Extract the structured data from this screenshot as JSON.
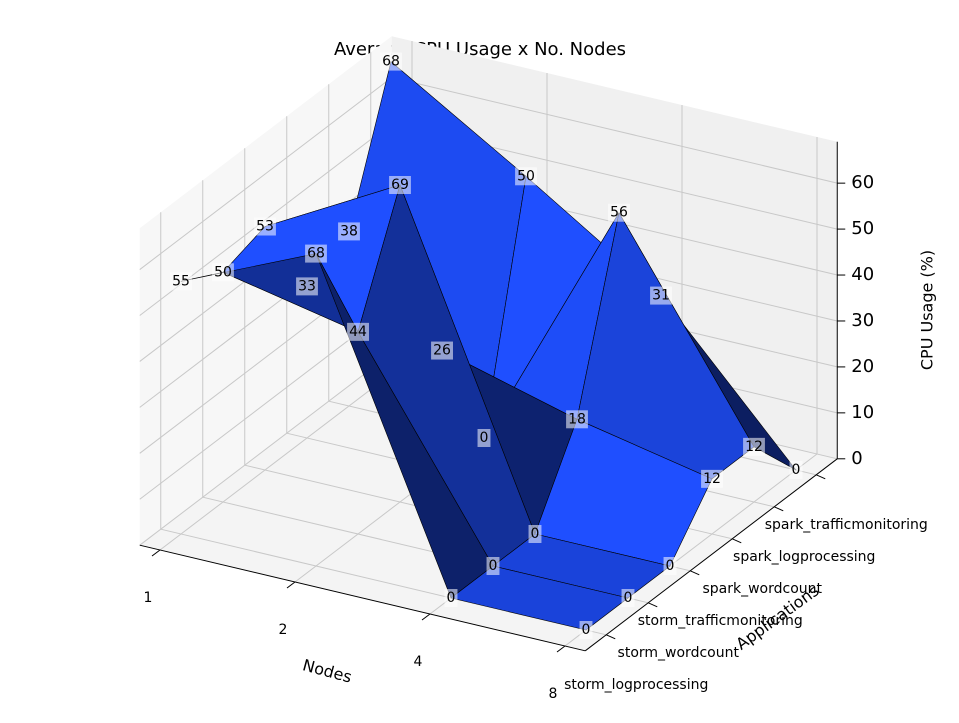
{
  "chart_data": {
    "type": "surface3d",
    "title": "Average CPU Usage x No. Nodes",
    "xlabel": "Nodes",
    "ylabel": "Applications",
    "zlabel": "CPU Usage (%)",
    "x_categories": [
      "1",
      "2",
      "4",
      "8"
    ],
    "y_categories": [
      "storm_logprocessing",
      "storm_wordcount",
      "storm_trafficmonitoring",
      "spark_wordcount",
      "spark_logprocessing",
      "spark_trafficmonitoring"
    ],
    "values": [
      [
        55,
        50,
        53,
        33,
        38,
        68
      ],
      [
        68,
        44,
        69,
        26,
        0,
        50
      ],
      [
        0,
        0,
        0,
        18,
        56,
        31
      ],
      [
        0,
        0,
        0,
        12,
        12,
        0
      ]
    ],
    "zlim": [
      0,
      69
    ],
    "zticks": [
      0,
      10,
      20,
      30,
      40,
      50,
      60
    ],
    "color": "#1f4fff",
    "grid": true
  }
}
